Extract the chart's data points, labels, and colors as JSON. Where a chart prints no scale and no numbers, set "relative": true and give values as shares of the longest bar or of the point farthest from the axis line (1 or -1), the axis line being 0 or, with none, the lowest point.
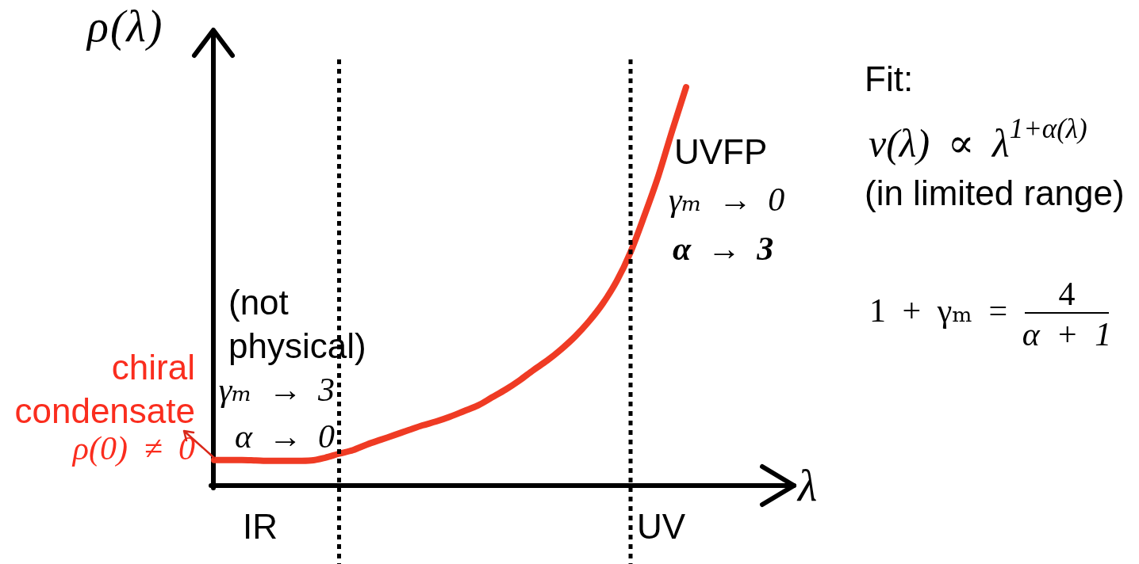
{
  "chart_data": {
    "type": "line",
    "relative": true,
    "xlabel": "λ",
    "ylabel": "ρ(λ)",
    "categories": [
      null,
      null,
      null,
      null,
      null,
      null,
      null,
      null,
      null,
      null,
      null,
      null,
      null,
      null,
      null,
      null,
      null,
      null,
      null,
      null,
      null,
      null,
      null,
      null,
      null,
      null,
      null,
      null,
      null,
      null,
      null,
      null,
      null,
      null,
      null,
      null,
      null,
      null,
      null,
      null,
      null,
      null,
      null
    ],
    "values": [
      0.064,
      0.064,
      0.064,
      0.063,
      0.062,
      0.062,
      0.062,
      0.063,
      0.07,
      0.08,
      0.089,
      0.103,
      0.115,
      0.127,
      0.139,
      0.151,
      0.161,
      0.173,
      0.187,
      0.201,
      0.221,
      0.241,
      0.264,
      0.29,
      0.314,
      0.342,
      0.374,
      0.412,
      0.457,
      0.513,
      0.586,
      0.678,
      0.777,
      0.891,
      1,
      null,
      null,
      null,
      null,
      null,
      null,
      null,
      null
    ],
    "color": "#ef3b24",
    "marker": "none",
    "line_style": "solid",
    "tick_labels": false,
    "annotations": [
      "Fit:",
      "ν(λ) ∝ λ$^{1+α(λ)}$",
      "(in limited range)",
      "1 + γₘ =",
      "4",
      "α + 1",
      "UVFP",
      "γₘ → 0",
      "α → 3",
      "(not physical)",
      "γₘ → 3",
      "α → 0",
      "chiral condensate",
      "ρ(0) ≠ 0",
      "IR",
      "UV"
    ]
  }
}
